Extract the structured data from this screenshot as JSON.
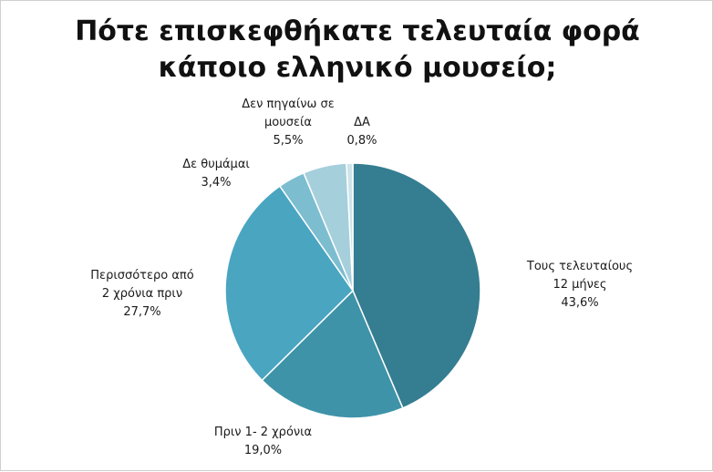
{
  "chart_data": {
    "type": "pie",
    "title_lines": [
      "Πότε επισκεφθήκατε τελευταία φορά",
      "κάποιο ελληνικό μουσείο;"
    ],
    "slices": [
      {
        "label_lines": [
          "Τους τελευταίους",
          "12 μήνες"
        ],
        "value_label": "43,6%",
        "value": 43.6,
        "color": "#357d91"
      },
      {
        "label_lines": [
          "Πριν 1- 2 χρόνια"
        ],
        "value_label": "19,0%",
        "value": 19.0,
        "color": "#3e93a8"
      },
      {
        "label_lines": [
          "Περισσότερο από",
          "2 χρόνια πριν"
        ],
        "value_label": "27,7%",
        "value": 27.7,
        "color": "#4aa5c1"
      },
      {
        "label_lines": [
          "Δε θυμάμαι"
        ],
        "value_label": "3,4%",
        "value": 3.4,
        "color": "#7cbdd0"
      },
      {
        "label_lines": [
          "Δεν πηγαίνω σε",
          "μουσεία"
        ],
        "value_label": "5,5%",
        "value": 5.5,
        "color": "#a6cfdc"
      },
      {
        "label_lines": [
          "ΔΑ"
        ],
        "value_label": "0,8%",
        "value": 0.8,
        "color": "#cde4ea"
      }
    ]
  }
}
